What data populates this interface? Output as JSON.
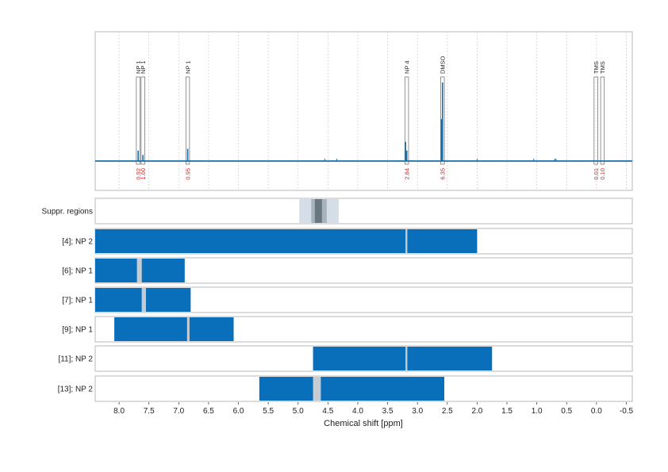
{
  "chart_data": {
    "type": "line",
    "xlabel": "Chemical shift [ppm]",
    "x_axis": {
      "range": [
        8.4,
        -0.6
      ],
      "reversed": true,
      "ticks": [
        "8.0",
        "7.5",
        "7.0",
        "6.5",
        "6.0",
        "5.5",
        "5.0",
        "4.5",
        "4.0",
        "3.5",
        "3.0",
        "2.5",
        "2.0",
        "1.5",
        "1.0",
        "0.5",
        "0.0",
        "-0.5"
      ]
    },
    "grid": "dotted vertical",
    "spectrum_peaks": [
      {
        "ppm": 7.68,
        "height": 0.12
      },
      {
        "ppm": 7.6,
        "height": 0.07
      },
      {
        "ppm": 6.85,
        "height": 0.14
      },
      {
        "ppm": 3.2,
        "height": 0.22
      },
      {
        "ppm": 3.18,
        "height": 0.12
      },
      {
        "ppm": 2.6,
        "height": 0.48
      },
      {
        "ppm": 2.58,
        "height": 0.9
      }
    ],
    "peak_annotations": [
      {
        "label": "NP 1",
        "ppm": 7.68,
        "integral": "0.92"
      },
      {
        "label": "NP 1",
        "ppm": 7.6,
        "integral": "1.00"
      },
      {
        "label": "NP 1",
        "ppm": 6.85,
        "integral": "0.95"
      },
      {
        "label": "NP 4",
        "ppm": 3.18,
        "integral": "2.84"
      },
      {
        "label": "DMSO",
        "ppm": 2.58,
        "integral": "6.35"
      },
      {
        "label": "TMS",
        "ppm": 0.01,
        "integral": "0.01"
      },
      {
        "label": "TMS",
        "ppm": -0.1,
        "integral": "0.10"
      }
    ],
    "suppression": {
      "label": "Suppr. regions",
      "outer": [
        4.98,
        4.32
      ],
      "mid": [
        4.78,
        4.52
      ],
      "inner": [
        4.72,
        4.6
      ]
    },
    "rows": [
      {
        "label": "[4]; NP 2",
        "segments": [
          [
            8.4,
            3.2
          ],
          [
            3.17,
            2.0
          ]
        ]
      },
      {
        "label": "[6]; NP 1",
        "segments": [
          [
            8.4,
            7.7
          ],
          [
            7.62,
            6.9
          ]
        ]
      },
      {
        "label": "[7]; NP 1",
        "segments": [
          [
            8.4,
            7.62
          ],
          [
            7.55,
            6.8
          ]
        ]
      },
      {
        "label": "[9]; NP 1",
        "segments": [
          [
            8.08,
            6.86
          ],
          [
            6.82,
            6.08
          ]
        ]
      },
      {
        "label": "[11]; NP 2",
        "segments": [
          [
            4.75,
            3.2
          ],
          [
            3.17,
            1.75
          ]
        ]
      },
      {
        "label": "[13]; NP 2",
        "segments": [
          [
            5.65,
            4.75
          ],
          [
            4.62,
            2.55
          ]
        ]
      }
    ],
    "colors": {
      "bar": "#0a6fbb",
      "bar_gap": "#c6ccd2",
      "spectrum": "#1a6ea8",
      "integral": "#e0201b",
      "suppr_outer": "#d5dde6",
      "suppr_mid": "#a7b3bd",
      "suppr_inner": "#6a7780"
    }
  }
}
